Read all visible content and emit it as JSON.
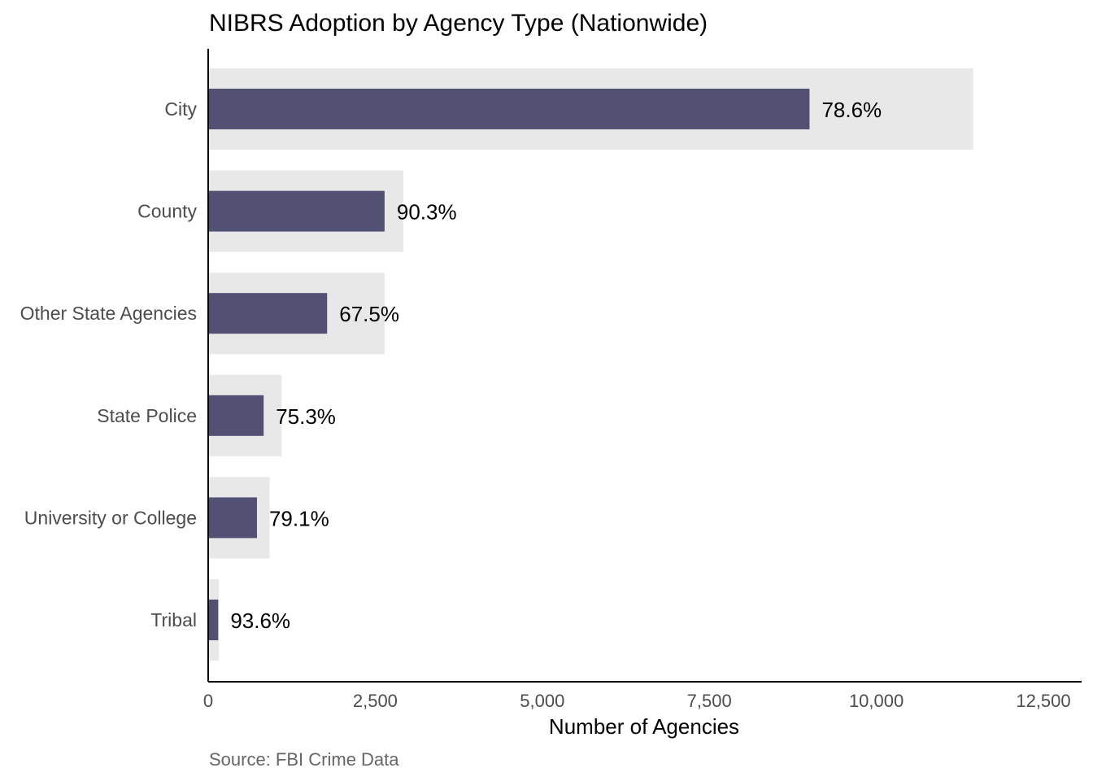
{
  "chart_data": {
    "type": "bar",
    "orientation": "horizontal",
    "title": "NIBRS Adoption by Agency Type (Nationwide)",
    "xlabel": "Number of Agencies",
    "ylabel": "",
    "caption": "Source: FBI Crime Data",
    "xlim": [
      0,
      12500
    ],
    "xticks": [
      0,
      2500,
      5000,
      7500,
      10000,
      12500
    ],
    "xtick_labels": [
      "0",
      "2,500",
      "5,000",
      "7,500",
      "10,000",
      "12,500"
    ],
    "grid": false,
    "legend": "none",
    "categories": [
      "City",
      "County",
      "Other State Agencies",
      "State Police",
      "University or College",
      "Tribal"
    ],
    "series": [
      {
        "values": [
          11450,
          2920,
          2640,
          1100,
          920,
          160
        ],
        "color": "#e8e8e8"
      },
      {
        "values": [
          9000,
          2640,
          1780,
          830,
          730,
          150
        ],
        "color": "#525174"
      }
    ],
    "data_labels": [
      "78.6%",
      "90.3%",
      "67.5%",
      "75.3%",
      "79.1%",
      "93.6%"
    ]
  }
}
